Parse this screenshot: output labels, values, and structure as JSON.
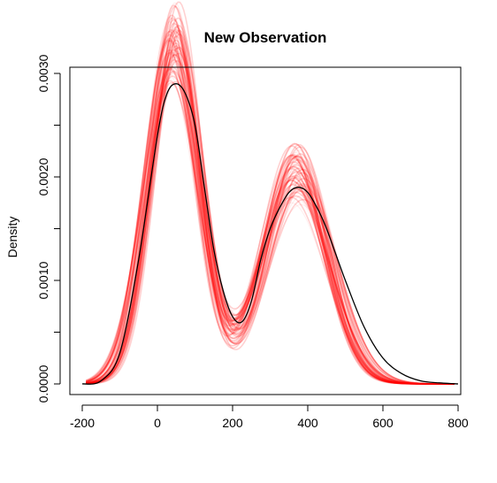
{
  "chart_data": {
    "type": "line",
    "title": "New Observation",
    "xlabel": "",
    "ylabel": "Density",
    "xlim": [
      -200,
      800
    ],
    "ylim": [
      0,
      0.003
    ],
    "x_ticks": [
      -200,
      0,
      200,
      400,
      600,
      800
    ],
    "x_tick_labels": [
      "-200",
      "0",
      "200",
      "400",
      "600",
      "800"
    ],
    "y_ticks": [
      0.0,
      0.0005,
      0.001,
      0.0015,
      0.002,
      0.0025,
      0.003
    ],
    "y_tick_labels": [
      "0.0000",
      "",
      "0.0010",
      "",
      "0.0020",
      "",
      "0.0030"
    ],
    "grid": false,
    "legend": "none",
    "colors": {
      "reference": "#000000",
      "samples": "#ff0000"
    },
    "reference_curve": {
      "color": "#000000",
      "x": [
        -200,
        -150,
        -100,
        -50,
        0,
        25,
        50,
        75,
        100,
        125,
        150,
        175,
        200,
        225,
        250,
        275,
        300,
        325,
        350,
        375,
        400,
        425,
        450,
        500,
        550,
        600,
        650,
        700,
        750,
        800
      ],
      "y": [
        0.0,
        3e-05,
        0.0003,
        0.0012,
        0.0024,
        0.0028,
        0.0029,
        0.0028,
        0.0025,
        0.0019,
        0.0013,
        0.0009,
        0.00065,
        0.0006,
        0.0008,
        0.0012,
        0.0015,
        0.0017,
        0.00185,
        0.0019,
        0.00185,
        0.0017,
        0.0015,
        0.001,
        0.00055,
        0.00025,
        0.0001,
        3e-05,
        1e-05,
        0.0
      ]
    },
    "sample_curves": {
      "color": "#ff0000",
      "count": 60,
      "peak1_x_range": [
        30,
        60
      ],
      "peak1_y_range": [
        0.0026,
        0.00305
      ],
      "trough_x_range": [
        195,
        225
      ],
      "trough_y_range": [
        0.0006,
        0.001
      ],
      "peak2_x_range": [
        355,
        390
      ],
      "peak2_y_range": [
        0.0018,
        0.0021
      ]
    }
  }
}
